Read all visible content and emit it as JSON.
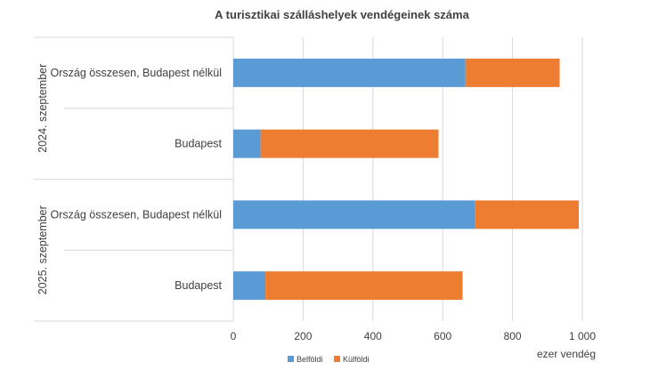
{
  "chart_data": {
    "type": "bar",
    "orientation": "horizontal",
    "stacked": true,
    "title": "A turisztikai  szálláshelyek vendégeinek száma",
    "xlabel": "ezer vendég",
    "xlim": [
      0,
      1000
    ],
    "xticks": [
      0,
      200,
      400,
      600,
      800,
      1000
    ],
    "xtick_labels": [
      "0",
      "200",
      "400",
      "600",
      "800",
      "1 000"
    ],
    "grid": "vertical",
    "legend_position": "bottom",
    "groups": [
      {
        "label": "2024. szeptember",
        "categories": [
          "Ország összesen, Budapest nélkül",
          "Budapest"
        ],
        "series": [
          {
            "name": "Belföldi",
            "values": [
              665,
              78
            ]
          },
          {
            "name": "Külföldi",
            "values": [
              270,
              510
            ]
          }
        ]
      },
      {
        "label": "2025. szeptember",
        "categories": [
          "Ország összesen, Budapest nélkül",
          "Budapest"
        ],
        "series": [
          {
            "name": "Belföldi",
            "values": [
              692,
              92
            ]
          },
          {
            "name": "Külföldi",
            "values": [
              298,
              565
            ]
          }
        ]
      }
    ],
    "colors": {
      "Belföldi": "#5b9bd5",
      "Külföldi": "#ed7d31"
    }
  }
}
